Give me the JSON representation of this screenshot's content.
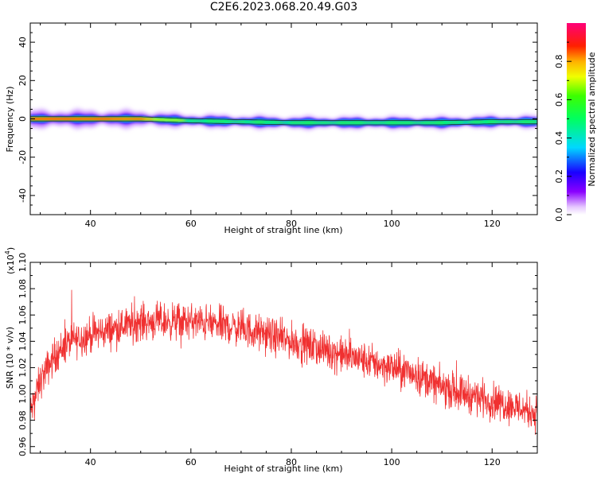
{
  "title": "C2E6.2023.068.20.49.G03",
  "chart_data": [
    {
      "type": "heatmap",
      "title": "C2E6.2023.068.20.49.G03",
      "xlabel": "Height of straight line (km)",
      "ylabel": "Frequency (Hz)",
      "xlim": [
        28,
        129
      ],
      "ylim": [
        -50,
        50
      ],
      "xticks": [
        40,
        60,
        80,
        100,
        120
      ],
      "yticks": [
        -40,
        -20,
        0,
        20,
        40
      ],
      "colorbar": {
        "label": "Normalized spectral amplitude",
        "range": [
          0,
          1
        ],
        "ticks": [
          "0.0",
          "0.2",
          "0.4",
          "0.6",
          "0.8"
        ],
        "colormap": "rainbow (white → violet → blue → cyan → green → yellow → orange → red → magenta)"
      },
      "ridge": {
        "x": [
          28,
          40,
          50,
          55,
          60,
          70,
          80,
          90,
          100,
          110,
          120,
          129
        ],
        "frequency": [
          0,
          0,
          0,
          -0.5,
          -1,
          -1.5,
          -2,
          -2,
          -2,
          -2,
          -1.5,
          -1.5
        ],
        "peak_amplitude": [
          1.0,
          0.95,
          0.85,
          0.55,
          0.42,
          0.35,
          0.3,
          0.28,
          0.28,
          0.28,
          0.3,
          0.32
        ]
      }
    },
    {
      "type": "line",
      "xlabel": "Height of straight line (km)",
      "ylabel": "SNR (10 * v/v)",
      "ylabel_multiplier": "(x10^4)",
      "multiplier_text": "(x10",
      "multiplier_exp": "4",
      "multiplier_close": ")",
      "xlim": [
        28,
        129
      ],
      "ylim": [
        0.955,
        1.1
      ],
      "xticks": [
        40,
        60,
        80,
        100,
        120
      ],
      "yticks": [
        "0.96",
        "0.98",
        "1.00",
        "1.02",
        "1.04",
        "1.06",
        "1.08",
        "1.10"
      ],
      "series": [
        {
          "color": "#f03030",
          "x": [
            28,
            30,
            33,
            36,
            40,
            45,
            50,
            55,
            60,
            65,
            70,
            75,
            80,
            85,
            90,
            95,
            100,
            105,
            110,
            115,
            120,
            125,
            129
          ],
          "values": [
            0.985,
            1.01,
            1.03,
            1.04,
            1.045,
            1.05,
            1.055,
            1.055,
            1.055,
            1.053,
            1.05,
            1.045,
            1.04,
            1.035,
            1.03,
            1.025,
            1.02,
            1.015,
            1.005,
            1.0,
            0.995,
            0.99,
            0.985
          ],
          "noise_amplitude": 0.02
        }
      ]
    }
  ]
}
